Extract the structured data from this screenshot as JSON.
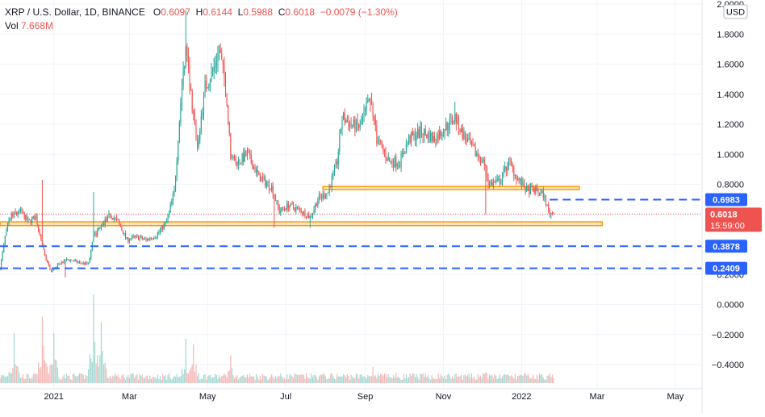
{
  "legend": {
    "symbol": "XRP / U.S. Dollar, 1D, BINANCE",
    "o_label": "O",
    "o_value": "0.6097",
    "h_label": "H",
    "h_value": "0.6144",
    "l_label": "L",
    "l_value": "0.5988",
    "c_label": "C",
    "c_value": "0.6018",
    "change": "−0.0079 (−1.30%)",
    "vol_label": "Vol",
    "vol_value": "7.668M"
  },
  "currency_badge": "USD",
  "colors": {
    "up": "#26a69a",
    "down": "#ef5350",
    "zone": "#ff9800",
    "dashed": "#2962ff",
    "label_blue": "#2962ff",
    "price_label": "#ef5350",
    "volume_up": "#a3d8d2",
    "volume_down": "#f5b7b5"
  },
  "chart_data": {
    "type": "candlestick",
    "title": "XRP / U.S. Dollar, 1D, BINANCE",
    "x_tick_labels": [
      "2021",
      "Mar",
      "May",
      "Jul",
      "Sep",
      "Nov",
      "2022",
      "Mar",
      "May"
    ],
    "x_tick_dates": [
      "2021-01-01",
      "2021-03-01",
      "2021-05-01",
      "2021-07-01",
      "2021-09-01",
      "2021-11-01",
      "2022-01-01",
      "2022-03-01",
      "2022-05-01"
    ],
    "y_tick_labels": [
      "2.0000",
      "1.8000",
      "1.6000",
      "1.4000",
      "1.2000",
      "1.0000",
      "0.8000",
      "0.6000",
      "0.4000",
      "0.2000",
      "0.0000",
      "−0.2000",
      "−0.4000"
    ],
    "y_tick_values": [
      2.0,
      1.8,
      1.6,
      1.4,
      1.2,
      1.0,
      0.8,
      0.6,
      0.4,
      0.2,
      0.0,
      -0.2,
      -0.4
    ],
    "ylim": [
      -0.45,
      2.02
    ],
    "xlim": [
      "2020-11-20",
      "2022-05-25"
    ],
    "grid": true,
    "price_path": [
      [
        "2020-11-20",
        0.24
      ],
      [
        "2020-11-24",
        0.45
      ],
      [
        "2020-11-28",
        0.58
      ],
      [
        "2020-12-01",
        0.6
      ],
      [
        "2020-12-06",
        0.62
      ],
      [
        "2020-12-12",
        0.55
      ],
      [
        "2020-12-18",
        0.58
      ],
      [
        "2020-12-22",
        0.42
      ],
      [
        "2020-12-26",
        0.3
      ],
      [
        "2020-12-30",
        0.22
      ],
      [
        "2021-01-05",
        0.27
      ],
      [
        "2021-01-12",
        0.3
      ],
      [
        "2021-01-20",
        0.28
      ],
      [
        "2021-01-28",
        0.27
      ],
      [
        "2021-02-01",
        0.45
      ],
      [
        "2021-02-07",
        0.52
      ],
      [
        "2021-02-14",
        0.6
      ],
      [
        "2021-02-20",
        0.55
      ],
      [
        "2021-02-27",
        0.43
      ],
      [
        "2021-03-06",
        0.45
      ],
      [
        "2021-03-14",
        0.43
      ],
      [
        "2021-03-22",
        0.46
      ],
      [
        "2021-03-30",
        0.55
      ],
      [
        "2021-04-05",
        0.75
      ],
      [
        "2021-04-10",
        1.35
      ],
      [
        "2021-04-14",
        1.7
      ],
      [
        "2021-04-18",
        1.4
      ],
      [
        "2021-04-23",
        1.05
      ],
      [
        "2021-04-29",
        1.45
      ],
      [
        "2021-05-05",
        1.55
      ],
      [
        "2021-05-10",
        1.7
      ],
      [
        "2021-05-15",
        1.45
      ],
      [
        "2021-05-19",
        1.0
      ],
      [
        "2021-05-25",
        0.95
      ],
      [
        "2021-06-01",
        1.0
      ],
      [
        "2021-06-10",
        0.85
      ],
      [
        "2021-06-20",
        0.78
      ],
      [
        "2021-06-26",
        0.62
      ],
      [
        "2021-07-03",
        0.66
      ],
      [
        "2021-07-12",
        0.63
      ],
      [
        "2021-07-20",
        0.58
      ],
      [
        "2021-07-26",
        0.7
      ],
      [
        "2021-08-03",
        0.75
      ],
      [
        "2021-08-10",
        0.95
      ],
      [
        "2021-08-14",
        1.25
      ],
      [
        "2021-08-20",
        1.2
      ],
      [
        "2021-08-28",
        1.18
      ],
      [
        "2021-09-05",
        1.38
      ],
      [
        "2021-09-10",
        1.1
      ],
      [
        "2021-09-20",
        0.95
      ],
      [
        "2021-09-28",
        0.95
      ],
      [
        "2021-10-05",
        1.1
      ],
      [
        "2021-10-15",
        1.15
      ],
      [
        "2021-10-25",
        1.1
      ],
      [
        "2021-11-05",
        1.2
      ],
      [
        "2021-11-10",
        1.25
      ],
      [
        "2021-11-15",
        1.15
      ],
      [
        "2021-11-25",
        1.02
      ],
      [
        "2021-12-03",
        0.95
      ],
      [
        "2021-12-06",
        0.8
      ],
      [
        "2021-12-15",
        0.82
      ],
      [
        "2021-12-22",
        0.95
      ],
      [
        "2021-12-28",
        0.85
      ],
      [
        "2022-01-05",
        0.76
      ],
      [
        "2022-01-12",
        0.76
      ],
      [
        "2022-01-18",
        0.73
      ],
      [
        "2022-01-22",
        0.62
      ],
      [
        "2022-01-26",
        0.6
      ]
    ],
    "spikes": [
      [
        "2020-12-23",
        0.83,
        "high"
      ],
      [
        "2021-01-10",
        0.18,
        "low"
      ],
      [
        "2021-02-01",
        0.75,
        "high"
      ],
      [
        "2021-04-14",
        1.96,
        "high"
      ],
      [
        "2021-06-22",
        0.51,
        "low"
      ],
      [
        "2021-07-20",
        0.51,
        "low"
      ],
      [
        "2021-09-06",
        1.41,
        "high"
      ],
      [
        "2021-11-10",
        1.35,
        "high"
      ],
      [
        "2021-12-04",
        0.6,
        "low"
      ],
      [
        "2022-01-24",
        0.57,
        "low"
      ]
    ],
    "last_candle": {
      "date": "2022-01-26",
      "open": 0.6097,
      "high": 0.6144,
      "low": 0.5988,
      "close": 0.6018
    },
    "volume": {
      "peaks": [
        [
          "2020-12-01",
          0.09
        ],
        [
          "2020-12-23",
          0.12
        ],
        [
          "2021-01-01",
          0.09
        ],
        [
          "2021-02-01",
          0.16
        ],
        [
          "2021-02-07",
          0.11
        ],
        [
          "2021-04-14",
          0.08
        ],
        [
          "2021-04-20",
          0.07
        ],
        [
          "2021-05-19",
          0.05
        ],
        [
          "2021-09-07",
          0.03
        ],
        [
          "2021-12-04",
          0.02
        ]
      ],
      "baseline": 0.01
    },
    "zones": [
      {
        "low": 0.525,
        "high": 0.55,
        "start": "2020-11-20",
        "end": "2022-03-05"
      },
      {
        "low": 0.765,
        "high": 0.785,
        "start": "2021-07-30",
        "end": "2022-02-15"
      }
    ],
    "dashed_levels": [
      {
        "value": 0.6983,
        "label": "0.6983",
        "start": "2022-01-23"
      },
      {
        "value": 0.3878,
        "label": "0.3878",
        "start": "2020-11-20"
      },
      {
        "value": 0.2409,
        "label": "0.2409",
        "start": "2020-11-20"
      }
    ],
    "current_price": {
      "value": 0.6018,
      "label": "0.6018",
      "countdown": "15:59:00"
    }
  }
}
